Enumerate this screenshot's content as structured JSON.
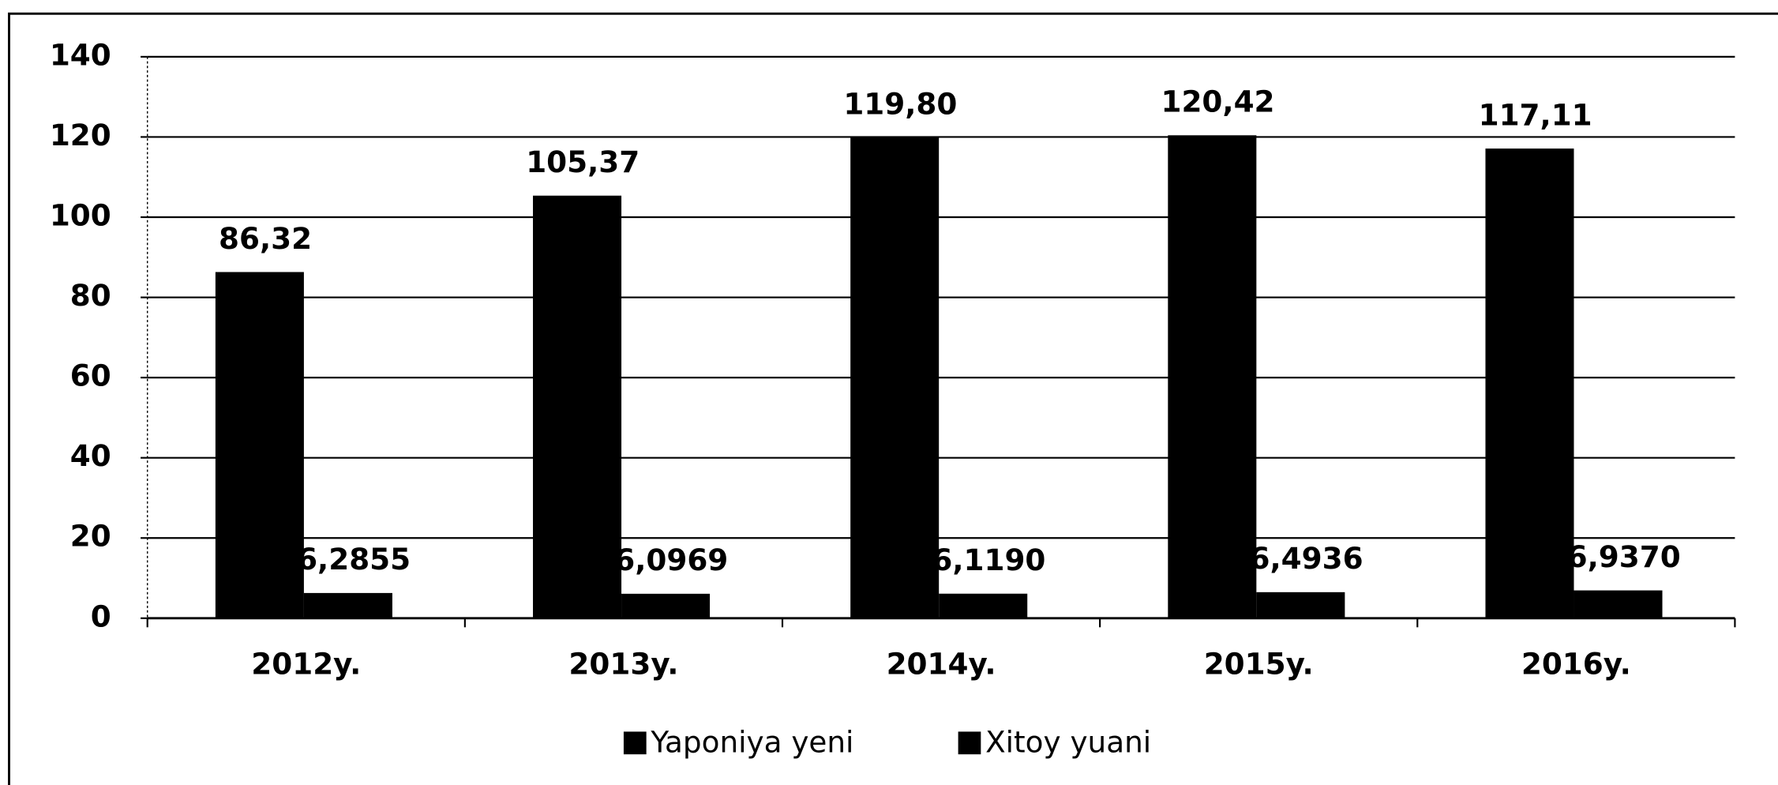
{
  "chart_data": {
    "type": "bar",
    "categories": [
      "2012y.",
      "2013y.",
      "2014y.",
      "2015y.",
      "2016y."
    ],
    "series": [
      {
        "name": "Yaponiya yeni",
        "color": "#000000",
        "values": [
          86.32,
          105.37,
          119.8,
          120.42,
          117.11
        ],
        "value_labels": [
          "86,32",
          "105,37",
          "119,80",
          "120,42",
          "117,11"
        ]
      },
      {
        "name": "Xitoy yuani",
        "color": "#000000",
        "values": [
          6.2855,
          6.0969,
          6.119,
          6.4936,
          6.937
        ],
        "value_labels": [
          "6,2855",
          "6,0969",
          "6,1190",
          "6,4936",
          "6,9370"
        ]
      }
    ],
    "ylim": [
      0,
      140
    ],
    "yticks": [
      0,
      20,
      40,
      60,
      80,
      100,
      120,
      140
    ],
    "grid": true,
    "legend": "bottom"
  }
}
